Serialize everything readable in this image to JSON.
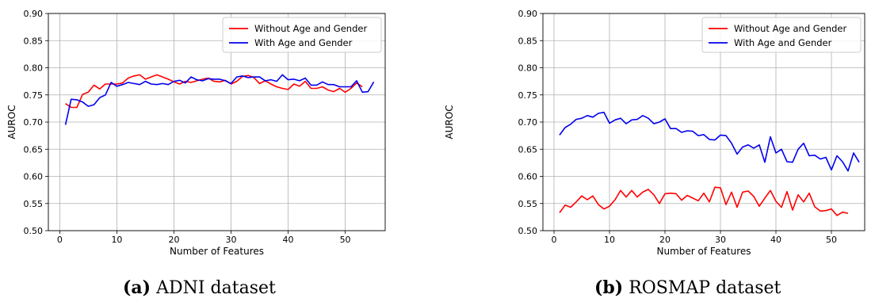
{
  "captions": [
    {
      "tag": "(a)",
      "text": "ADNI dataset"
    },
    {
      "tag": "(b)",
      "text": "ROSMAP dataset"
    }
  ],
  "chart_data": [
    {
      "type": "line",
      "title": "",
      "xlabel": "Number of Features",
      "ylabel": "AUROC",
      "xlim": [
        -2,
        57
      ],
      "ylim": [
        0.5,
        0.9
      ],
      "xticks": [
        0,
        10,
        20,
        30,
        40,
        50
      ],
      "yticks": [
        0.5,
        0.55,
        0.6,
        0.65,
        0.7,
        0.75,
        0.8,
        0.85,
        0.9
      ],
      "grid": true,
      "legend": "top-right",
      "series": [
        {
          "name": "Without Age and Gender",
          "color": "#ff0000",
          "x": [
            1,
            2,
            3,
            4,
            5,
            6,
            7,
            8,
            9,
            10,
            11,
            12,
            13,
            14,
            15,
            16,
            17,
            18,
            19,
            20,
            21,
            22,
            23,
            24,
            25,
            26,
            27,
            28,
            29,
            30,
            31,
            32,
            33,
            34,
            35,
            36,
            37,
            38,
            39,
            40,
            41,
            42,
            43,
            44,
            45,
            46,
            47,
            48,
            49,
            50,
            51,
            52,
            53
          ],
          "y": [
            0.734,
            0.727,
            0.727,
            0.751,
            0.755,
            0.768,
            0.761,
            0.77,
            0.77,
            0.77,
            0.772,
            0.781,
            0.785,
            0.787,
            0.779,
            0.783,
            0.787,
            0.783,
            0.779,
            0.774,
            0.77,
            0.775,
            0.773,
            0.776,
            0.779,
            0.781,
            0.775,
            0.774,
            0.777,
            0.77,
            0.775,
            0.784,
            0.786,
            0.782,
            0.771,
            0.776,
            0.77,
            0.765,
            0.762,
            0.76,
            0.77,
            0.766,
            0.775,
            0.762,
            0.762,
            0.765,
            0.759,
            0.756,
            0.762,
            0.755,
            0.762,
            0.772,
            0.765
          ]
        },
        {
          "name": "With Age and Gender",
          "color": "#0000ee",
          "x": [
            1,
            2,
            3,
            4,
            5,
            6,
            7,
            8,
            9,
            10,
            11,
            12,
            13,
            14,
            15,
            16,
            17,
            18,
            19,
            20,
            21,
            22,
            23,
            24,
            25,
            26,
            27,
            28,
            29,
            30,
            31,
            32,
            33,
            34,
            35,
            36,
            37,
            38,
            39,
            40,
            41,
            42,
            43,
            44,
            45,
            46,
            47,
            48,
            49,
            50,
            51,
            52,
            53,
            54,
            55
          ],
          "y": [
            0.695,
            0.742,
            0.741,
            0.737,
            0.729,
            0.732,
            0.745,
            0.75,
            0.773,
            0.766,
            0.769,
            0.773,
            0.771,
            0.769,
            0.775,
            0.77,
            0.769,
            0.771,
            0.769,
            0.775,
            0.777,
            0.772,
            0.783,
            0.778,
            0.776,
            0.78,
            0.779,
            0.779,
            0.776,
            0.771,
            0.783,
            0.785,
            0.782,
            0.783,
            0.783,
            0.776,
            0.778,
            0.775,
            0.787,
            0.778,
            0.779,
            0.776,
            0.781,
            0.768,
            0.768,
            0.774,
            0.769,
            0.769,
            0.765,
            0.765,
            0.765,
            0.776,
            0.755,
            0.756,
            0.774
          ]
        }
      ]
    },
    {
      "type": "line",
      "title": "",
      "xlabel": "Number of Features",
      "ylabel": "AUROC",
      "xlim": [
        -2,
        56
      ],
      "ylim": [
        0.5,
        0.9
      ],
      "xticks": [
        0,
        10,
        20,
        30,
        40,
        50
      ],
      "yticks": [
        0.5,
        0.55,
        0.6,
        0.65,
        0.7,
        0.75,
        0.8,
        0.85,
        0.9
      ],
      "grid": true,
      "legend": "top-right",
      "series": [
        {
          "name": "Without Age and Gender",
          "color": "#ff0000",
          "x": [
            1,
            2,
            3,
            4,
            5,
            6,
            7,
            8,
            9,
            10,
            11,
            12,
            13,
            14,
            15,
            16,
            17,
            18,
            19,
            20,
            21,
            22,
            23,
            24,
            25,
            26,
            27,
            28,
            29,
            30,
            31,
            32,
            33,
            34,
            35,
            36,
            37,
            38,
            39,
            40,
            41,
            42,
            43,
            44,
            45,
            46,
            47,
            48,
            49,
            50,
            51,
            52,
            53
          ],
          "y": [
            0.533,
            0.547,
            0.543,
            0.553,
            0.564,
            0.557,
            0.564,
            0.548,
            0.54,
            0.545,
            0.557,
            0.574,
            0.562,
            0.574,
            0.562,
            0.571,
            0.576,
            0.566,
            0.55,
            0.568,
            0.569,
            0.568,
            0.556,
            0.565,
            0.56,
            0.555,
            0.569,
            0.553,
            0.58,
            0.579,
            0.548,
            0.571,
            0.543,
            0.571,
            0.573,
            0.563,
            0.545,
            0.56,
            0.574,
            0.554,
            0.543,
            0.572,
            0.538,
            0.566,
            0.553,
            0.569,
            0.544,
            0.536,
            0.537,
            0.54,
            0.528,
            0.534,
            0.532
          ]
        },
        {
          "name": "With Age and Gender",
          "color": "#0000ee",
          "x": [
            1,
            2,
            3,
            4,
            5,
            6,
            7,
            8,
            9,
            10,
            11,
            12,
            13,
            14,
            15,
            16,
            17,
            18,
            19,
            20,
            21,
            22,
            23,
            24,
            25,
            26,
            27,
            28,
            29,
            30,
            31,
            32,
            33,
            34,
            35,
            36,
            37,
            38,
            39,
            40,
            41,
            42,
            43,
            44,
            45,
            46,
            47,
            48,
            49,
            50,
            51,
            52,
            53,
            54,
            55
          ],
          "y": [
            0.676,
            0.69,
            0.696,
            0.705,
            0.707,
            0.712,
            0.709,
            0.716,
            0.718,
            0.698,
            0.704,
            0.707,
            0.697,
            0.704,
            0.705,
            0.712,
            0.707,
            0.697,
            0.7,
            0.706,
            0.688,
            0.688,
            0.681,
            0.684,
            0.683,
            0.675,
            0.677,
            0.668,
            0.667,
            0.676,
            0.675,
            0.661,
            0.641,
            0.654,
            0.658,
            0.652,
            0.658,
            0.626,
            0.673,
            0.643,
            0.65,
            0.627,
            0.626,
            0.65,
            0.661,
            0.638,
            0.639,
            0.632,
            0.635,
            0.612,
            0.638,
            0.627,
            0.61,
            0.643,
            0.626
          ]
        }
      ]
    }
  ]
}
